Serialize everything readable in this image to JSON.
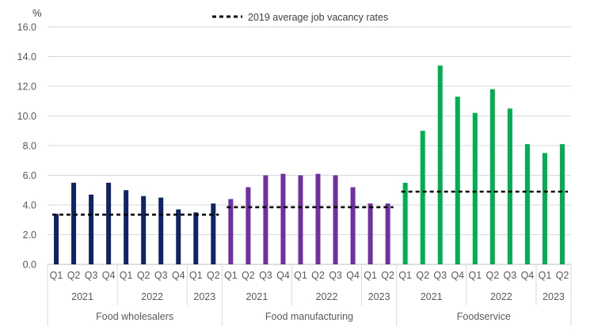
{
  "chart_data": {
    "type": "bar",
    "ylabel": "%",
    "ylim": [
      0,
      16
    ],
    "yticks": [
      "0.0",
      "2.0",
      "4.0",
      "6.0",
      "8.0",
      "10.0",
      "12.0",
      "14.0",
      "16.0"
    ],
    "grid": true,
    "legend": {
      "label": "2019 average job vacancy rates",
      "position": "top-center"
    },
    "colors": {
      "Food wholesalers": "#0f2463",
      "Food manufacturing": "#7030a0",
      "Foodservice": "#00b050",
      "average_line": "#000000",
      "grid": "#d9d9d9",
      "text": "#595959"
    },
    "groups": [
      {
        "name": "Food wholesalers",
        "average_2019": 3.35,
        "years": [
          {
            "year": "2021",
            "quarters": [
              "Q1",
              "Q2",
              "Q3",
              "Q4"
            ],
            "values": [
              3.4,
              5.5,
              4.7,
              5.5
            ]
          },
          {
            "year": "2022",
            "quarters": [
              "Q1",
              "Q2",
              "Q3",
              "Q4"
            ],
            "values": [
              5.0,
              4.6,
              4.5,
              3.7
            ]
          },
          {
            "year": "2023",
            "quarters": [
              "Q1",
              "Q2"
            ],
            "values": [
              3.5,
              4.1
            ]
          }
        ]
      },
      {
        "name": "Food manufacturing",
        "average_2019": 3.85,
        "years": [
          {
            "year": "2021",
            "quarters": [
              "Q1",
              "Q2",
              "Q3",
              "Q4"
            ],
            "values": [
              4.4,
              5.2,
              6.0,
              6.1
            ]
          },
          {
            "year": "2022",
            "quarters": [
              "Q1",
              "Q2",
              "Q3",
              "Q4"
            ],
            "values": [
              6.0,
              6.1,
              6.0,
              5.2
            ]
          },
          {
            "year": "2023",
            "quarters": [
              "Q1",
              "Q2"
            ],
            "values": [
              4.1,
              4.1
            ]
          }
        ]
      },
      {
        "name": "Foodservice",
        "average_2019": 4.9,
        "years": [
          {
            "year": "2021",
            "quarters": [
              "Q1",
              "Q2",
              "Q3",
              "Q4"
            ],
            "values": [
              5.5,
              9.0,
              13.4,
              11.3
            ]
          },
          {
            "year": "2022",
            "quarters": [
              "Q1",
              "Q2",
              "Q3",
              "Q4"
            ],
            "values": [
              10.2,
              11.8,
              10.5,
              8.1
            ]
          },
          {
            "year": "2023",
            "quarters": [
              "Q1",
              "Q2"
            ],
            "values": [
              7.5,
              8.1
            ]
          }
        ]
      }
    ]
  }
}
